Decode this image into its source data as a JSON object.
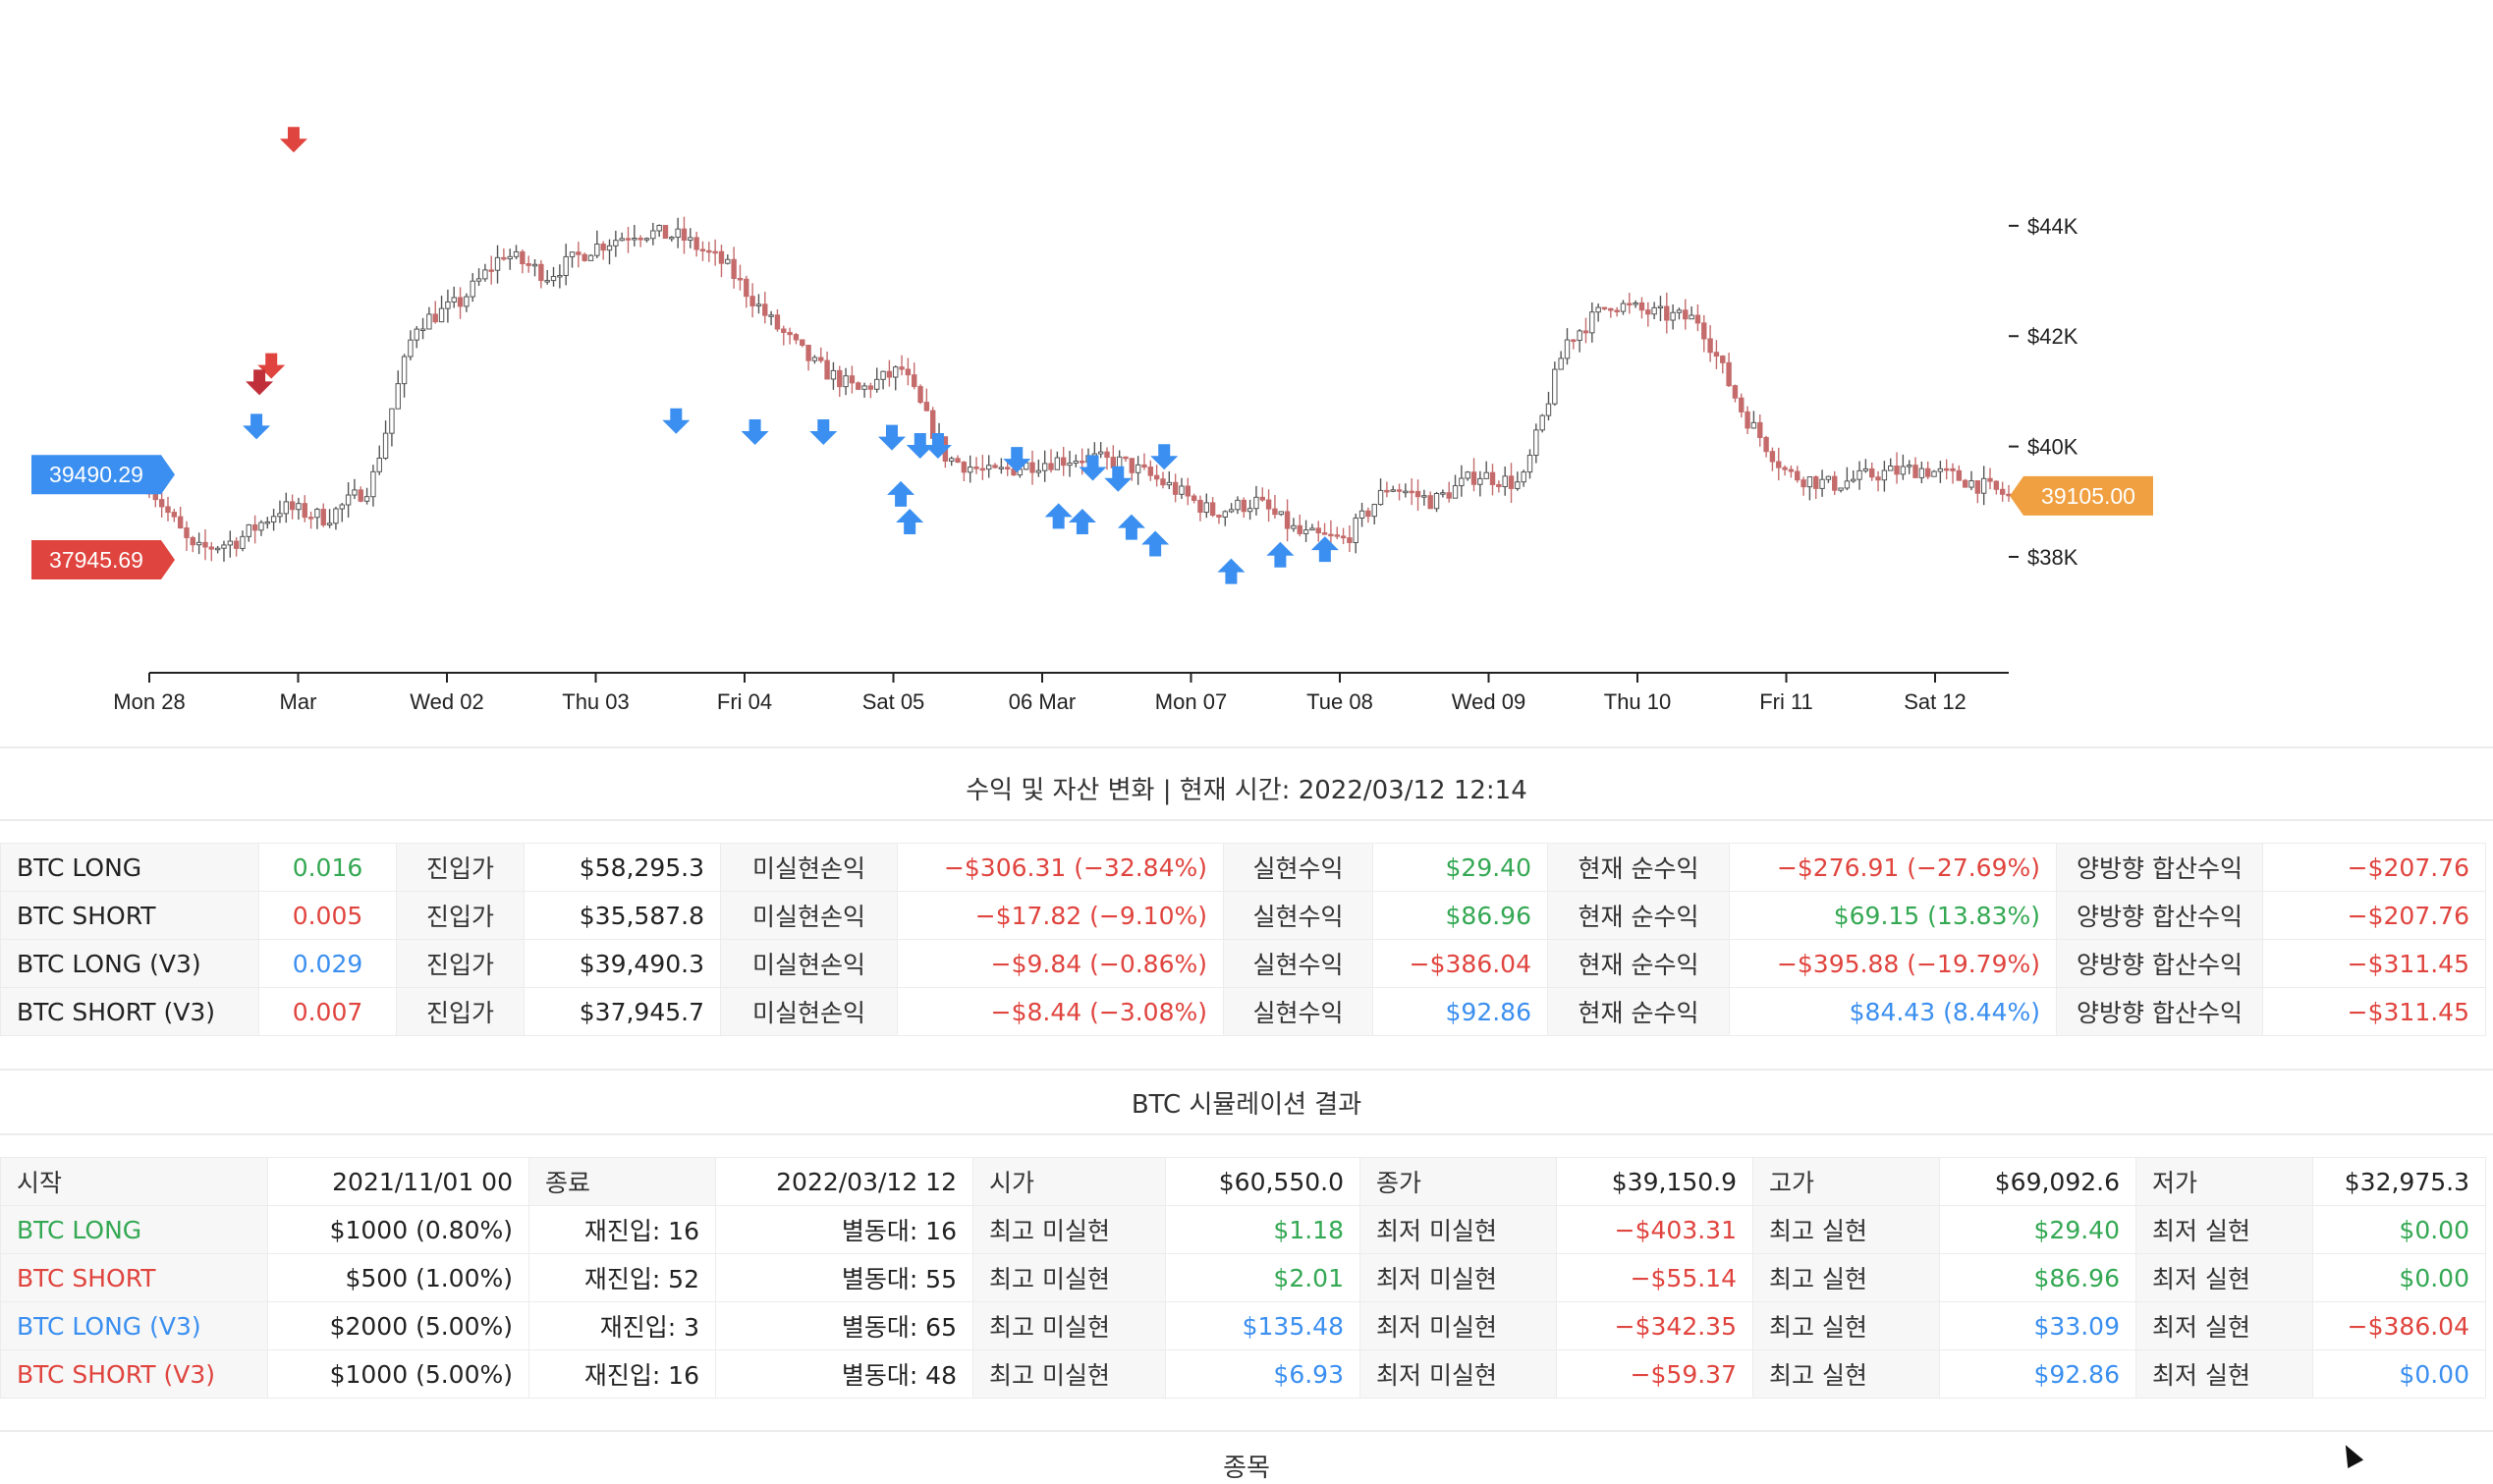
{
  "chart_data": {
    "type": "candlestick",
    "x_ticks": [
      "Mon 28",
      "Mar",
      "Wed 02",
      "Thu 03",
      "Fri 04",
      "Sat 05",
      "06 Mar",
      "Mon 07",
      "Tue 08",
      "Wed 09",
      "Thu 10",
      "Fri 11",
      "Sat 12"
    ],
    "y_ticks": [
      "$38K",
      "$40K",
      "$42K",
      "$44K"
    ],
    "y_tick_values": [
      38000,
      40000,
      42000,
      44000
    ],
    "ylim": [
      36700,
      45600
    ],
    "price_path": [
      39300,
      38100,
      38300,
      38900,
      38700,
      39300,
      42200,
      42600,
      43500,
      43100,
      43600,
      43900,
      43800,
      43300,
      42300,
      41500,
      41000,
      41400,
      39800,
      39500,
      39700,
      39800,
      39700,
      39300,
      38800,
      39000,
      38400,
      38300,
      39300,
      39000,
      39500,
      39300,
      41900,
      42600,
      42400,
      42300,
      40600,
      39500,
      39300,
      39500,
      39600,
      39400,
      39100
    ],
    "markers": {
      "short_entry_down": [
        [
          0.97,
          45400
        ],
        [
          0.82,
          41300
        ],
        [
          0.74,
          41000
        ]
      ],
      "long_entry_down": [
        [
          0.72,
          40200
        ],
        [
          3.54,
          40300
        ],
        [
          4.07,
          40100
        ],
        [
          4.53,
          40100
        ],
        [
          4.99,
          40000
        ],
        [
          5.18,
          39850
        ],
        [
          5.3,
          39850
        ],
        [
          5.83,
          39600
        ],
        [
          6.34,
          39450
        ],
        [
          6.51,
          39250
        ],
        [
          6.82,
          39650
        ]
      ],
      "long_exit_up": [
        [
          5.05,
          39300
        ],
        [
          5.11,
          38800
        ],
        [
          6.11,
          38900
        ],
        [
          6.27,
          38800
        ],
        [
          6.6,
          38700
        ],
        [
          6.76,
          38400
        ],
        [
          7.27,
          37900
        ],
        [
          7.6,
          38200
        ],
        [
          7.9,
          38300
        ]
      ]
    },
    "price_labels": [
      {
        "text": "39490.29",
        "value": 39490.29,
        "side": "left",
        "color": "#3b8ff0"
      },
      {
        "text": "37945.69",
        "value": 37945.69,
        "side": "left",
        "color": "#e0443e"
      },
      {
        "text": "39105.00",
        "value": 39105.0,
        "side": "right",
        "color": "#f0a040"
      }
    ],
    "colors": {
      "up": "#555555",
      "down": "#c56b6b",
      "long": "#3b8ff0",
      "short": "#e0443e",
      "short_dark": "#c0303a"
    }
  },
  "section1": {
    "title": "수익 및 자산 변화 | 현재 시간: 2022/03/12 12:14",
    "rows": [
      {
        "name": "BTC LONG",
        "qty": "0.016",
        "qty_color": "g",
        "l1": "진입가",
        "entry": "$58,295.3",
        "l2": "미실현손익",
        "unreal": "−$306.31 (−32.84%)",
        "unreal_color": "red",
        "l3": "실현수익",
        "real": "$29.40",
        "real_color": "g",
        "l4": "현재 순수익",
        "net": "−$276.91 (−27.69%)",
        "net_color": "red",
        "l5": "양방향 합산수익",
        "total": "−$207.76",
        "total_color": "red"
      },
      {
        "name": "BTC SHORT",
        "qty": "0.005",
        "qty_color": "red",
        "l1": "진입가",
        "entry": "$35,587.8",
        "l2": "미실현손익",
        "unreal": "−$17.82 (−9.10%)",
        "unreal_color": "red",
        "l3": "실현수익",
        "real": "$86.96",
        "real_color": "g",
        "l4": "현재 순수익",
        "net": "$69.15 (13.83%)",
        "net_color": "g",
        "l5": "양방향 합산수익",
        "total": "−$207.76",
        "total_color": "red"
      },
      {
        "name": "BTC LONG (V3)",
        "qty": "0.029",
        "qty_color": "b",
        "l1": "진입가",
        "entry": "$39,490.3",
        "l2": "미실현손익",
        "unreal": "−$9.84 (−0.86%)",
        "unreal_color": "red",
        "l3": "실현수익",
        "real": "−$386.04",
        "real_color": "red",
        "l4": "현재 순수익",
        "net": "−$395.88 (−19.79%)",
        "net_color": "red",
        "l5": "양방향 합산수익",
        "total": "−$311.45",
        "total_color": "red"
      },
      {
        "name": "BTC SHORT (V3)",
        "qty": "0.007",
        "qty_color": "red",
        "l1": "진입가",
        "entry": "$37,945.7",
        "l2": "미실현손익",
        "unreal": "−$8.44 (−3.08%)",
        "unreal_color": "red",
        "l3": "실현수익",
        "real": "$92.86",
        "real_color": "b",
        "l4": "현재 순수익",
        "net": "$84.43 (8.44%)",
        "net_color": "b",
        "l5": "양방향 합산수익",
        "total": "−$311.45",
        "total_color": "red"
      }
    ]
  },
  "section2": {
    "title": "BTC 시뮬레이션 결과",
    "header": {
      "c0": "시작",
      "c1": "2021/11/01 00",
      "c2": "종료",
      "c3": "2022/03/12 12",
      "c4": "시가",
      "c5": "$60,550.0",
      "c6": "종가",
      "c7": "$39,150.9",
      "c8": "고가",
      "c9": "$69,092.6",
      "c10": "저가",
      "c11": "$32,975.3"
    },
    "rows": [
      {
        "name": "BTC LONG",
        "name_color": "g",
        "c1": "$1000 (0.80%)",
        "c2": "재진입: 16",
        "c3": "별동대: 16",
        "c4": "최고 미실현",
        "c5": "$1.18",
        "c5_color": "g",
        "c6": "최저 미실현",
        "c7": "−$403.31",
        "c7_color": "red",
        "c8": "최고 실현",
        "c9": "$29.40",
        "c9_color": "g",
        "c10": "최저 실현",
        "c11": "$0.00",
        "c11_color": "g"
      },
      {
        "name": "BTC SHORT",
        "name_color": "red",
        "c1": "$500 (1.00%)",
        "c2": "재진입: 52",
        "c3": "별동대: 55",
        "c4": "최고 미실현",
        "c5": "$2.01",
        "c5_color": "g",
        "c6": "최저 미실현",
        "c7": "−$55.14",
        "c7_color": "red",
        "c8": "최고 실현",
        "c9": "$86.96",
        "c9_color": "g",
        "c10": "최저 실현",
        "c11": "$0.00",
        "c11_color": "g"
      },
      {
        "name": "BTC LONG (V3)",
        "name_color": "b",
        "c1": "$2000 (5.00%)",
        "c2": "재진입: 3",
        "c3": "별동대: 65",
        "c4": "최고 미실현",
        "c5": "$135.48",
        "c5_color": "b",
        "c6": "최저 미실현",
        "c7": "−$342.35",
        "c7_color": "red",
        "c8": "최고 실현",
        "c9": "$33.09",
        "c9_color": "b",
        "c10": "최저 실현",
        "c11": "−$386.04",
        "c11_color": "red"
      },
      {
        "name": "BTC SHORT (V3)",
        "name_color": "red",
        "c1": "$1000 (5.00%)",
        "c2": "재진입: 16",
        "c3": "별동대: 48",
        "c4": "최고 미실현",
        "c5": "$6.93",
        "c5_color": "b",
        "c6": "최저 미실현",
        "c7": "−$59.37",
        "c7_color": "red",
        "c8": "최고 실현",
        "c9": "$92.86",
        "c9_color": "b",
        "c10": "최저 실현",
        "c11": "$0.00",
        "c11_color": "b"
      }
    ]
  },
  "section3": {
    "title": "종목"
  }
}
